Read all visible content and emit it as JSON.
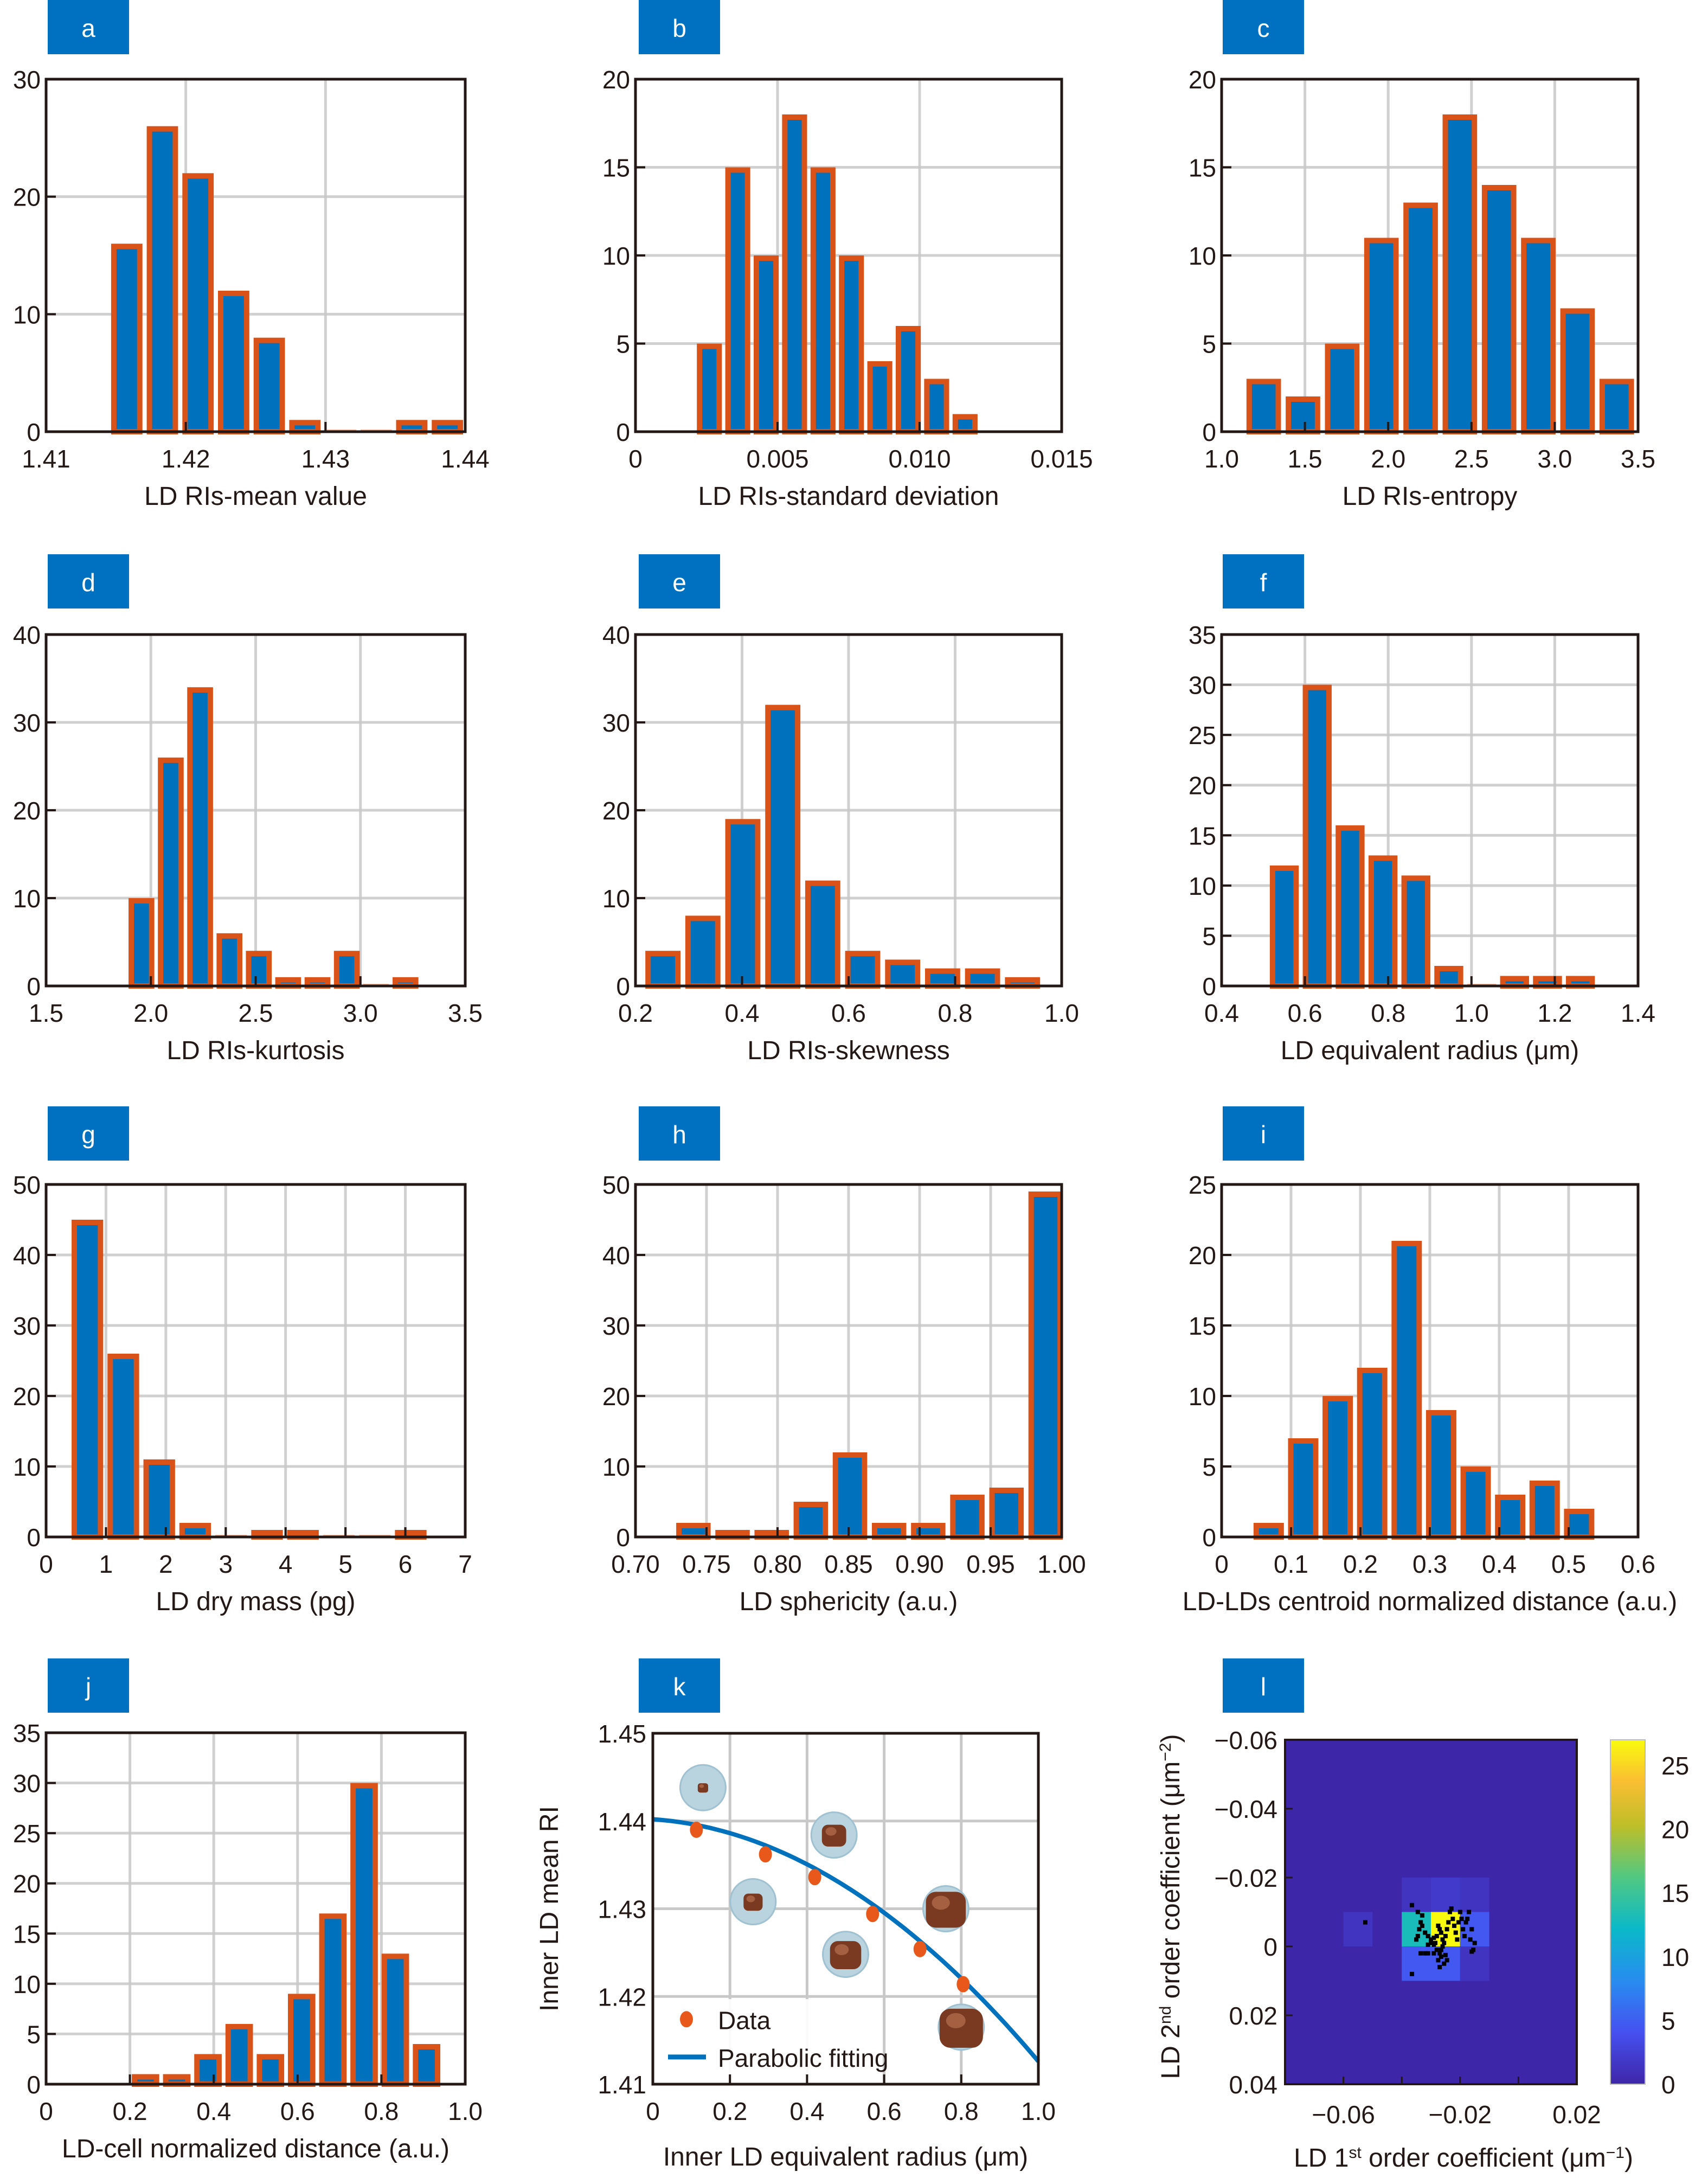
{
  "colors": {
    "bar_fill": "#0072BD",
    "bar_edge": "#D95319",
    "label_box": "#0070C0",
    "grid": "#C8C8C8",
    "fit_line": "#0072BD",
    "data_point": "#E8581A",
    "heatmap_base": "#3E26A8"
  },
  "chart_data": [
    {
      "panel": "a",
      "type": "bar",
      "xlabel": "LD RIs-mean value",
      "ylabel": "",
      "xlim": [
        1.41,
        1.44
      ],
      "ylim": [
        0,
        30
      ],
      "xticks": [
        1.41,
        1.42,
        1.43,
        1.44
      ],
      "xtick_labels": [
        "1.41",
        "1.42",
        "1.43",
        "1.44"
      ],
      "yticks": [
        0,
        10,
        20,
        30
      ],
      "ytick_labels": [
        "0",
        "10",
        "20",
        "30"
      ],
      "bin_start": 1.4145,
      "bin_width": 0.00255,
      "values": [
        16,
        26,
        22,
        12,
        8,
        1,
        0,
        0,
        1,
        1
      ],
      "grid": true
    },
    {
      "panel": "b",
      "type": "bar",
      "xlabel": "LD RIs-standard deviation",
      "ylabel": "",
      "xlim": [
        0,
        0.015
      ],
      "ylim": [
        0,
        20
      ],
      "xticks": [
        0,
        0.005,
        0.01,
        0.015
      ],
      "xtick_labels": [
        "0",
        "0.005",
        "0.010",
        "0.015"
      ],
      "yticks": [
        0,
        5,
        10,
        15,
        20
      ],
      "ytick_labels": [
        "0",
        "5",
        "10",
        "15",
        "20"
      ],
      "bin_start": 0.0021,
      "bin_width": 0.001,
      "values": [
        5,
        15,
        10,
        18,
        15,
        10,
        4,
        6,
        3,
        1
      ],
      "grid": true
    },
    {
      "panel": "c",
      "type": "bar",
      "xlabel": "LD RIs-entropy",
      "ylabel": "",
      "xlim": [
        1.0,
        3.5
      ],
      "ylim": [
        0,
        20
      ],
      "xticks": [
        1.0,
        1.5,
        2.0,
        2.5,
        3.0,
        3.5
      ],
      "xtick_labels": [
        "1.0",
        "1.5",
        "2.0",
        "2.5",
        "3.0",
        "3.5"
      ],
      "yticks": [
        0,
        5,
        10,
        15,
        20
      ],
      "ytick_labels": [
        "0",
        "5",
        "10",
        "15",
        "20"
      ],
      "bin_start": 1.135,
      "bin_width": 0.2355,
      "values": [
        3,
        2,
        5,
        11,
        13,
        18,
        14,
        11,
        7,
        3
      ],
      "grid": true
    },
    {
      "panel": "d",
      "type": "bar",
      "xlabel": "LD RIs-kurtosis",
      "ylabel": "",
      "xlim": [
        1.5,
        3.5
      ],
      "ylim": [
        0,
        40
      ],
      "xticks": [
        1.5,
        2.0,
        2.5,
        3.0,
        3.5
      ],
      "xtick_labels": [
        "1.5",
        "2.0",
        "2.5",
        "3.0",
        "3.5"
      ],
      "yticks": [
        0,
        10,
        20,
        30,
        40
      ],
      "ytick_labels": [
        "0",
        "10",
        "20",
        "30",
        "40"
      ],
      "bin_start": 1.885,
      "bin_width": 0.14,
      "values": [
        10,
        26,
        34,
        6,
        4,
        1,
        1,
        4,
        0,
        1
      ],
      "grid": true
    },
    {
      "panel": "e",
      "type": "bar",
      "xlabel": "LD RIs-skewness",
      "ylabel": "",
      "xlim": [
        0.2,
        1.0
      ],
      "ylim": [
        0,
        40
      ],
      "xticks": [
        0.2,
        0.4,
        0.6,
        0.8,
        1.0
      ],
      "xtick_labels": [
        "0.2",
        "0.4",
        "0.6",
        "0.8",
        "1.0"
      ],
      "yticks": [
        0,
        10,
        20,
        30,
        40
      ],
      "ytick_labels": [
        "0",
        "10",
        "20",
        "30",
        "40"
      ],
      "bin_start": 0.214,
      "bin_width": 0.075,
      "values": [
        4,
        8,
        19,
        32,
        12,
        4,
        3,
        2,
        2,
        1
      ],
      "grid": true
    },
    {
      "panel": "f",
      "type": "bar",
      "xlabel": "LD equivalent radius (μm)",
      "ylabel": "",
      "xlim": [
        0.4,
        1.4
      ],
      "ylim": [
        0,
        35
      ],
      "xticks": [
        0.4,
        0.6,
        0.8,
        1.0,
        1.2,
        1.4
      ],
      "xtick_labels": [
        "0.4",
        "0.6",
        "0.8",
        "1.0",
        "1.2",
        "1.4"
      ],
      "yticks": [
        0,
        5,
        10,
        15,
        20,
        25,
        30,
        35
      ],
      "ytick_labels": [
        "0",
        "5",
        "10",
        "15",
        "20",
        "25",
        "30",
        "35"
      ],
      "bin_start": 0.511,
      "bin_width": 0.079,
      "values": [
        12,
        30,
        16,
        13,
        11,
        2,
        0,
        1,
        1,
        1
      ],
      "grid": true
    },
    {
      "panel": "g",
      "type": "bar",
      "xlabel": "LD dry mass (pg)",
      "ylabel": "",
      "xlim": [
        0,
        7
      ],
      "ylim": [
        0,
        50
      ],
      "xticks": [
        0,
        1,
        2,
        3,
        4,
        5,
        6,
        7
      ],
      "xtick_labels": [
        "0",
        "1",
        "2",
        "3",
        "4",
        "5",
        "6",
        "7"
      ],
      "yticks": [
        0,
        10,
        20,
        30,
        40,
        50
      ],
      "ytick_labels": [
        "0",
        "10",
        "20",
        "30",
        "40",
        "50"
      ],
      "bin_start": 0.39,
      "bin_width": 0.6,
      "values": [
        45,
        26,
        11,
        2,
        0,
        1,
        1,
        0,
        0,
        1
      ],
      "grid": true
    },
    {
      "panel": "h",
      "type": "bar",
      "xlabel": "LD sphericity (a.u.)",
      "ylabel": "",
      "xlim": [
        0.7,
        1.0
      ],
      "ylim": [
        0,
        50
      ],
      "xticks": [
        0.7,
        0.75,
        0.8,
        0.85,
        0.9,
        0.95,
        1.0
      ],
      "xtick_labels": [
        "0.70",
        "0.75",
        "0.80",
        "0.85",
        "0.90",
        "0.95",
        "1.00"
      ],
      "yticks": [
        0,
        10,
        20,
        30,
        40,
        50
      ],
      "ytick_labels": [
        "0",
        "10",
        "20",
        "30",
        "40",
        "50"
      ],
      "bin_start": 0.727,
      "bin_width": 0.02755,
      "values": [
        2,
        1,
        1,
        5,
        12,
        2,
        2,
        6,
        7,
        49
      ],
      "grid": true
    },
    {
      "panel": "i",
      "type": "bar",
      "xlabel": "LD-LDs centroid normalized distance (a.u.)",
      "ylabel": "",
      "xlim": [
        0,
        0.6
      ],
      "ylim": [
        0,
        25
      ],
      "xticks": [
        0,
        0.1,
        0.2,
        0.3,
        0.4,
        0.5,
        0.6
      ],
      "xtick_labels": [
        "0",
        "0.1",
        "0.2",
        "0.3",
        "0.4",
        "0.5",
        "0.6"
      ],
      "yticks": [
        0,
        5,
        10,
        15,
        20,
        25
      ],
      "ytick_labels": [
        "0",
        "5",
        "10",
        "15",
        "20",
        "25"
      ],
      "bin_start": 0.043,
      "bin_width": 0.0497,
      "values": [
        1,
        7,
        10,
        12,
        21,
        9,
        5,
        3,
        4,
        2
      ],
      "grid": true
    },
    {
      "panel": "j",
      "type": "bar",
      "xlabel": "LD-cell normalized distance (a.u.)",
      "ylabel": "",
      "xlim": [
        0,
        1.0
      ],
      "ylim": [
        0,
        35
      ],
      "xticks": [
        0,
        0.2,
        0.4,
        0.6,
        0.8,
        1.0
      ],
      "xtick_labels": [
        "0",
        "0.2",
        "0.4",
        "0.6",
        "0.8",
        "1.0"
      ],
      "yticks": [
        0,
        5,
        10,
        15,
        20,
        25,
        30,
        35
      ],
      "ytick_labels": [
        "0",
        "5",
        "10",
        "15",
        "20",
        "25",
        "30",
        "35"
      ],
      "bin_start": 0.2,
      "bin_width": 0.0745,
      "values": [
        1,
        1,
        3,
        6,
        3,
        9,
        17,
        30,
        13,
        4
      ],
      "grid": true
    },
    {
      "panel": "k",
      "type": "scatter",
      "xlabel": "Inner LD equivalent radius (μm)",
      "ylabel": "Inner LD mean RI",
      "xlim": [
        0,
        1.0
      ],
      "ylim": [
        1.41,
        1.45
      ],
      "xticks": [
        0,
        0.2,
        0.4,
        0.6,
        0.8,
        1.0
      ],
      "xtick_labels": [
        "0",
        "0.2",
        "0.4",
        "0.6",
        "0.8",
        "1.0"
      ],
      "yticks": [
        1.41,
        1.42,
        1.43,
        1.44,
        1.45
      ],
      "ytick_labels": [
        "1.41",
        "1.42",
        "1.43",
        "1.44",
        "1.45"
      ],
      "series": [
        {
          "name": "Data",
          "type": "scatter",
          "x": [
            0.113,
            0.292,
            0.42,
            0.57,
            0.693,
            0.805
          ],
          "y": [
            1.439,
            1.4362,
            1.4336,
            1.4294,
            1.4254,
            1.4214
          ]
        },
        {
          "name": "Parabolic fitting",
          "type": "line",
          "coeffs_quadratic": [
            1.4402,
            -0.003,
            -0.0246
          ]
        }
      ],
      "legend": "bottom-left",
      "inset_images": [
        {
          "x": 0.13,
          "y": 1.4438,
          "fill": 0.05
        },
        {
          "x": 0.26,
          "y": 1.4308,
          "fill": 0.3
        },
        {
          "x": 0.47,
          "y": 1.4384,
          "fill": 0.45
        },
        {
          "x": 0.5,
          "y": 1.4248,
          "fill": 0.65
        },
        {
          "x": 0.76,
          "y": 1.43,
          "fill": 0.9
        },
        {
          "x": 0.8,
          "y": 1.4165,
          "fill": 1.0
        }
      ],
      "grid": true
    },
    {
      "panel": "l",
      "type": "heatmap",
      "xlabel": "LD 1st order coefficient (μm−1)",
      "xlabel_parts": [
        "LD 1",
        "st",
        " order coefficient (μm",
        "−1",
        ")"
      ],
      "ylabel": "LD 2nd order coefficient (μm−2)",
      "ylabel_parts": [
        "LD 2",
        "nd",
        " order coefficient (μm",
        "−2",
        ")"
      ],
      "xlim": [
        -0.08,
        0.02
      ],
      "ylim": [
        -0.06,
        0.04
      ],
      "y_reversed": true,
      "xticks": [
        -0.06,
        -0.02,
        0.02
      ],
      "xtick_labels": [
        "−0.06",
        "−0.02",
        "0.02"
      ],
      "yticks": [
        -0.06,
        -0.04,
        -0.02,
        0,
        0.02,
        0.04
      ],
      "ytick_labels": [
        "−0.06",
        "−0.04",
        "−0.02",
        "0",
        "0.02",
        "0.04"
      ],
      "bin_width": 0.01,
      "cells": [
        {
          "x0": -0.06,
          "y0": -0.01,
          "count": 1
        },
        {
          "x0": -0.04,
          "y0": -0.02,
          "count": 1
        },
        {
          "x0": -0.03,
          "y0": -0.02,
          "count": 2
        },
        {
          "x0": -0.02,
          "y0": -0.02,
          "count": 1
        },
        {
          "x0": -0.04,
          "y0": -0.01,
          "count": 13
        },
        {
          "x0": -0.03,
          "y0": -0.01,
          "count": 27
        },
        {
          "x0": -0.02,
          "y0": -0.01,
          "count": 7
        },
        {
          "x0": -0.04,
          "y0": 0.0,
          "count": 6
        },
        {
          "x0": -0.03,
          "y0": 0.0,
          "count": 6
        },
        {
          "x0": -0.02,
          "y0": 0.0,
          "count": 1
        }
      ],
      "points": [
        [
          -0.0525,
          -0.007
        ],
        [
          -0.0365,
          -0.012
        ],
        [
          -0.0345,
          -0.01
        ],
        [
          -0.033,
          -0.009
        ],
        [
          -0.0335,
          -0.007
        ],
        [
          -0.033,
          -0.006
        ],
        [
          -0.034,
          -0.005
        ],
        [
          -0.0345,
          -0.003
        ],
        [
          -0.035,
          -0.002
        ],
        [
          -0.032,
          -0.004
        ],
        [
          -0.031,
          -0.003
        ],
        [
          -0.03,
          -0.002
        ],
        [
          -0.029,
          -0.0025
        ],
        [
          -0.0285,
          -0.001
        ],
        [
          -0.028,
          -0.003
        ],
        [
          -0.0275,
          -0.006
        ],
        [
          -0.027,
          -0.005
        ],
        [
          -0.0265,
          -0.004
        ],
        [
          -0.026,
          -0.002
        ],
        [
          -0.0255,
          -0.001
        ],
        [
          -0.025,
          -0.003
        ],
        [
          -0.0245,
          -0.005
        ],
        [
          -0.024,
          -0.007
        ],
        [
          -0.0235,
          -0.01
        ],
        [
          -0.023,
          -0.011
        ],
        [
          -0.0225,
          -0.008
        ],
        [
          -0.022,
          -0.006
        ],
        [
          -0.0215,
          -0.004
        ],
        [
          -0.021,
          -0.002
        ],
        [
          -0.0205,
          -0.007
        ],
        [
          -0.02,
          -0.01
        ],
        [
          -0.0195,
          -0.008
        ],
        [
          -0.019,
          -0.005
        ],
        [
          -0.0185,
          -0.003
        ],
        [
          -0.018,
          -0.007
        ],
        [
          -0.0175,
          -0.008
        ],
        [
          -0.017,
          -0.01
        ],
        [
          -0.016,
          -0.005
        ],
        [
          -0.0165,
          -0.002
        ],
        [
          -0.015,
          -0.001
        ],
        [
          -0.0155,
          0.001
        ],
        [
          -0.026,
          0.0
        ],
        [
          -0.0265,
          0.001
        ],
        [
          -0.027,
          0.002
        ],
        [
          -0.0265,
          0.003
        ],
        [
          -0.0275,
          0.004
        ],
        [
          -0.029,
          0.002
        ],
        [
          -0.031,
          0.002
        ],
        [
          -0.032,
          0.002
        ],
        [
          -0.0335,
          0.002
        ],
        [
          -0.025,
          0.0025
        ],
        [
          -0.0245,
          0.004
        ],
        [
          -0.0255,
          0.005
        ],
        [
          -0.027,
          0.006
        ],
        [
          -0.0365,
          0.008
        ],
        [
          -0.016,
          0.0015
        ],
        [
          -0.028,
          0.001
        ],
        [
          -0.029,
          -0.0005
        ],
        [
          -0.03,
          -0.001
        ],
        [
          -0.031,
          -0.0005
        ]
      ],
      "colorbar": {
        "min": 0,
        "max": 27,
        "ticks": [
          0,
          5,
          10,
          15,
          20,
          25
        ],
        "tick_labels": [
          "0",
          "5",
          "10",
          "15",
          "20",
          "25"
        ],
        "colormap": "parula"
      }
    }
  ],
  "panel_labels": [
    "a",
    "b",
    "c",
    "d",
    "e",
    "f",
    "g",
    "h",
    "i",
    "j",
    "k",
    "l"
  ]
}
